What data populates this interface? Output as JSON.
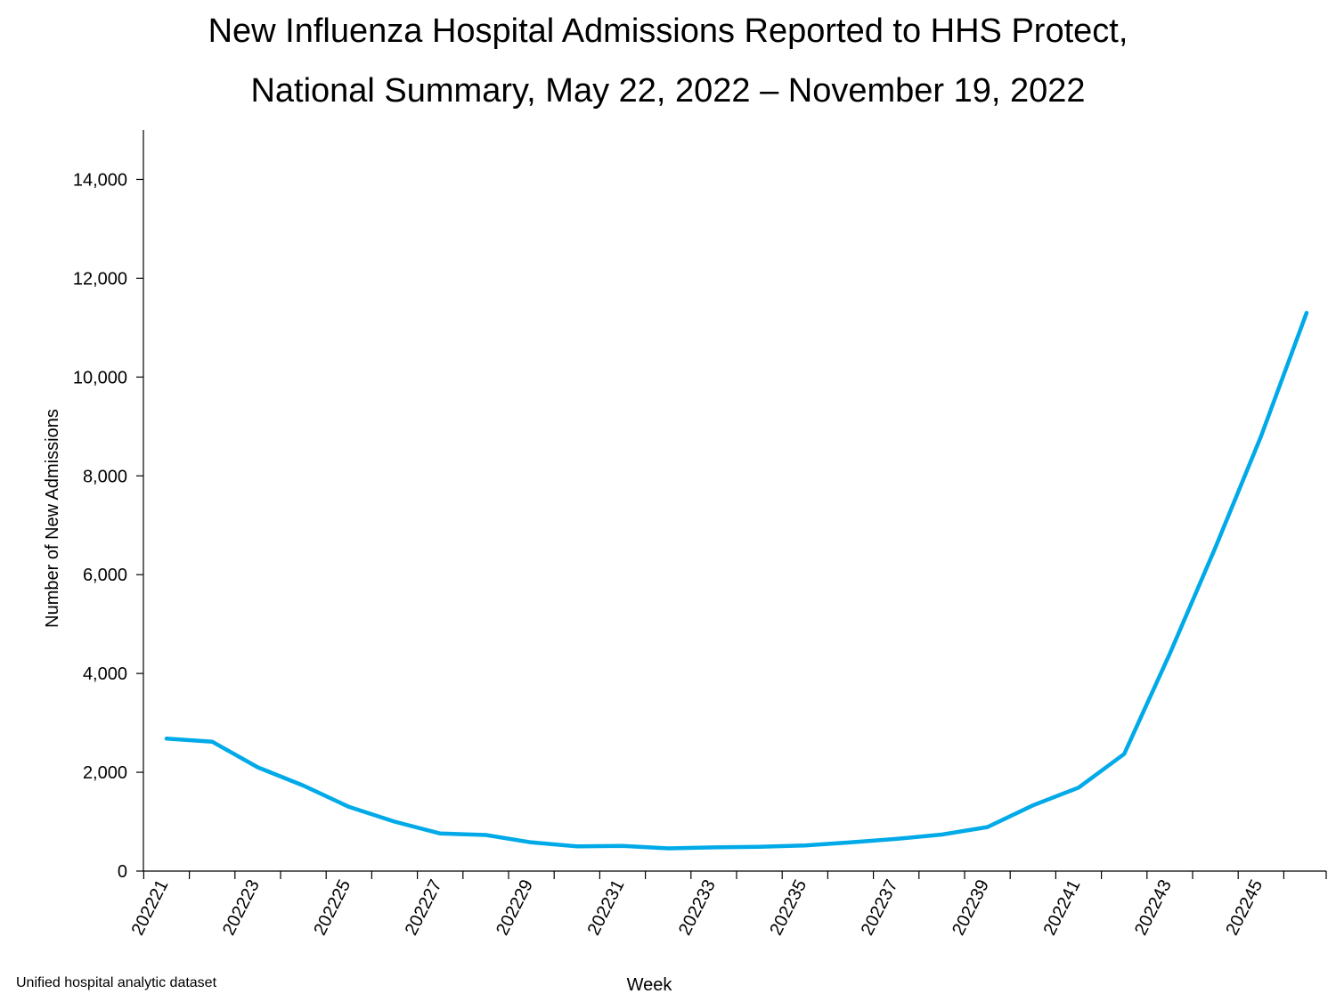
{
  "chart_data": {
    "type": "line",
    "title_lines": [
      "New Influenza Hospital Admissions Reported to HHS Protect,",
      "National Summary, May 22, 2022 – November 19, 2022"
    ],
    "xlabel": "Week",
    "ylabel": "Number of New Admissions",
    "ylim": [
      0,
      15000
    ],
    "yticks": [
      0,
      2000,
      4000,
      6000,
      8000,
      10000,
      12000,
      14000
    ],
    "ytick_labels": [
      "0",
      "2,000",
      "4,000",
      "6,000",
      "8,000",
      "10,000",
      "12,000",
      "14,000"
    ],
    "x": [
      "202221",
      "202222",
      "202223",
      "202224",
      "202225",
      "202226",
      "202227",
      "202228",
      "202229",
      "202230",
      "202231",
      "202232",
      "202233",
      "202234",
      "202235",
      "202236",
      "202237",
      "202238",
      "202239",
      "202240",
      "202241",
      "202242",
      "202243",
      "202244",
      "202245",
      "202246"
    ],
    "xtick_labels_shown": [
      "202221",
      "202223",
      "202225",
      "202227",
      "202229",
      "202231",
      "202233",
      "202235",
      "202237",
      "202239",
      "202241",
      "202243",
      "202245"
    ],
    "series": [
      {
        "values": [
          2680,
          2620,
          2100,
          1730,
          1300,
          1000,
          760,
          730,
          580,
          500,
          510,
          460,
          480,
          490,
          520,
          580,
          650,
          740,
          890,
          1330,
          1690,
          2370,
          4400,
          6550,
          8800,
          11300
        ],
        "color": "#00a9e8"
      }
    ],
    "grid": false,
    "legend": "none"
  },
  "footnote": "Unified hospital analytic dataset"
}
